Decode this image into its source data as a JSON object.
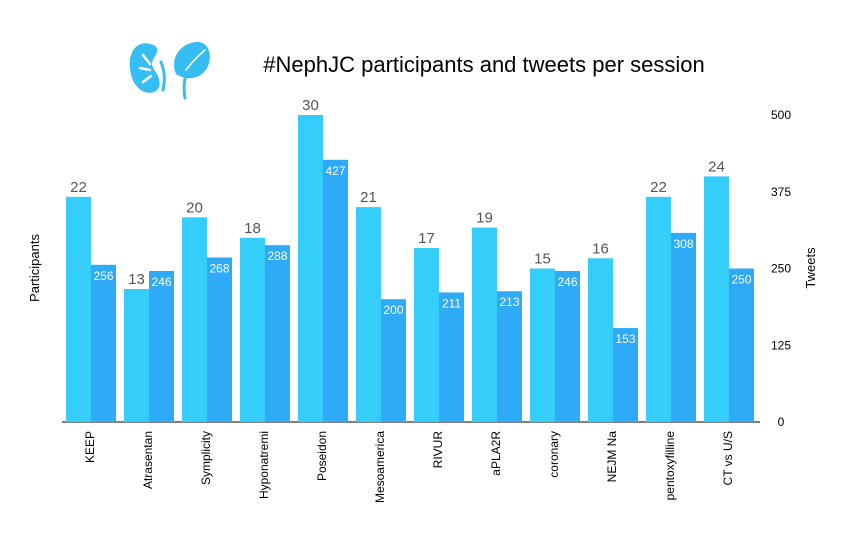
{
  "chart_data": {
    "type": "bar",
    "title": "#NephJC participants and tweets per session",
    "ylabel_left": "Participants",
    "ylabel_right": "Tweets",
    "categories": [
      "KEEP",
      "Atrasentan",
      "Symplicity",
      "Hyponatremi",
      "Poseidon",
      "Mesoamerica",
      "RIVUR",
      "aPLA2R",
      "coronary",
      "NEJM Na",
      "pentoxyfilline",
      "CT vs U/S"
    ],
    "series": [
      {
        "name": "Participants",
        "axis": "left",
        "color": "#35cdf9",
        "values": [
          22,
          13,
          20,
          18,
          30,
          21,
          17,
          19,
          15,
          16,
          22,
          24
        ]
      },
      {
        "name": "Tweets",
        "axis": "right",
        "color": "#2eaaf7",
        "values": [
          256,
          246,
          268,
          288,
          427,
          200,
          211,
          213,
          246,
          153,
          308,
          250
        ]
      }
    ],
    "ylim_left": [
      0,
      30
    ],
    "ylim_right": [
      0,
      500
    ],
    "right_ticks": [
      "0",
      "125",
      "250",
      "375",
      "500"
    ],
    "grid": false,
    "legend": "none"
  },
  "logo": {
    "name": "kidney-and-leaf-logo",
    "color": "#35bdf4"
  }
}
